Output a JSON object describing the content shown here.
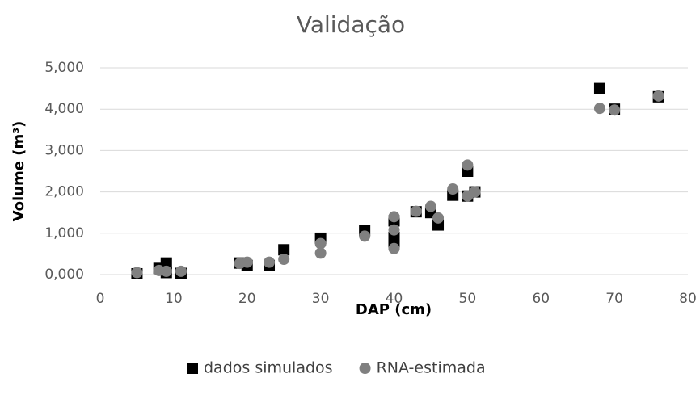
{
  "chart_data": {
    "type": "scatter",
    "title": "Validação",
    "xlabel": "DAP (cm)",
    "ylabel": "Volume (m³)",
    "xlim": [
      0,
      80
    ],
    "xticks": [
      0,
      10,
      20,
      30,
      40,
      50,
      60,
      70,
      80
    ],
    "ylim": [
      0,
      5
    ],
    "yticks": [
      {
        "value": 0,
        "label": "0,000"
      },
      {
        "value": 1,
        "label": "1,000"
      },
      {
        "value": 2,
        "label": "2,000"
      },
      {
        "value": 3,
        "label": "3,000"
      },
      {
        "value": 4,
        "label": "4,000"
      },
      {
        "value": 5,
        "label": "5,000"
      }
    ],
    "grid": true,
    "legend": "bottom",
    "series": [
      {
        "name": "dados simulados",
        "color": "#000000",
        "marker": "square",
        "x": [
          5,
          8,
          9,
          9,
          11,
          19,
          20,
          23,
          25,
          30,
          36,
          40,
          40,
          40,
          43,
          45,
          46,
          48,
          50,
          50,
          51,
          68,
          70,
          76
        ],
        "values": [
          0.02,
          0.15,
          0.28,
          0.05,
          0.03,
          0.28,
          0.22,
          0.22,
          0.6,
          0.88,
          1.07,
          1.3,
          0.9,
          0.75,
          1.52,
          1.5,
          1.2,
          1.92,
          2.5,
          1.9,
          2.0,
          4.5,
          4.0,
          4.3
        ]
      },
      {
        "name": "RNA-estimada",
        "color": "#808080",
        "marker": "circle",
        "x": [
          5,
          8,
          9,
          11,
          19,
          20,
          23,
          25,
          30,
          30,
          36,
          40,
          40,
          40,
          43,
          45,
          46,
          48,
          50,
          50,
          51,
          68,
          70,
          76
        ],
        "values": [
          0.05,
          0.1,
          0.08,
          0.08,
          0.27,
          0.3,
          0.3,
          0.37,
          0.75,
          0.52,
          0.93,
          1.4,
          1.08,
          0.63,
          1.53,
          1.65,
          1.37,
          2.07,
          2.65,
          1.9,
          2.0,
          4.02,
          3.98,
          4.32
        ]
      }
    ]
  }
}
